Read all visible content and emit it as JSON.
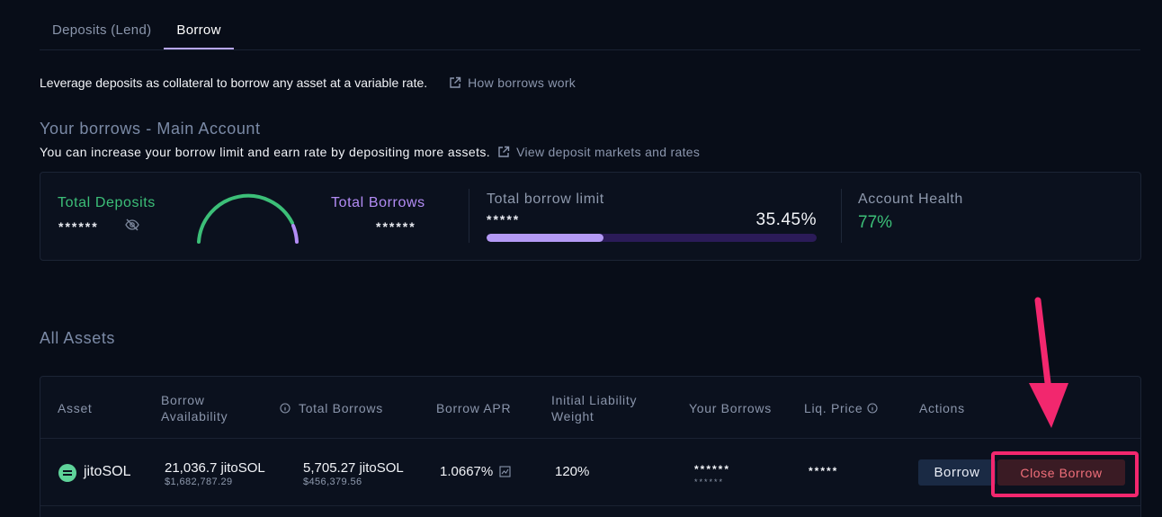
{
  "tabs": [
    {
      "label": "Deposits (Lend)",
      "active": false
    },
    {
      "label": "Borrow",
      "active": true
    }
  ],
  "intro": {
    "text": "Leverage deposits as collateral to borrow any asset at a variable rate.",
    "link": "How borrows work"
  },
  "borrows_section": {
    "title": "Your borrows - Main Account",
    "subtitle": "You can increase your borrow limit and earn rate by depositing more assets.",
    "link": "View deposit markets and rates"
  },
  "summary": {
    "total_deposits_label": "Total Deposits",
    "total_deposits_value": "******",
    "total_borrows_label": "Total Borrows",
    "total_borrows_value": "******",
    "borrow_limit_label": "Total borrow limit",
    "borrow_limit_value": "*****",
    "borrow_limit_percent": "35.45%",
    "borrow_limit_fraction": 0.3545,
    "account_health_label": "Account Health",
    "account_health_value": "77%"
  },
  "colors": {
    "green": "#3cbf78",
    "purple": "#b38cf5",
    "accent_red": "#f2276e"
  },
  "all_assets": {
    "title": "All Assets",
    "columns": {
      "asset": "Asset",
      "borrow_availability": "Borrow Availability",
      "total_borrows": "Total Borrows",
      "borrow_apr": "Borrow APR",
      "initial_liability_weight": "Initial Liability Weight",
      "your_borrows": "Your Borrows",
      "liq_price": "Liq. Price",
      "actions": "Actions"
    },
    "rows": [
      {
        "asset": "jitoSOL",
        "borrow_availability": "21,036.7 jitoSOL",
        "borrow_availability_usd": "$1,682,787.29",
        "total_borrows": "5,705.27 jitoSOL",
        "total_borrows_usd": "$456,379.56",
        "borrow_apr": "1.0667%",
        "initial_liability_weight": "120%",
        "your_borrows": "******",
        "your_borrows_sub": "******",
        "liq_price": "*****",
        "borrow_button": "Borrow",
        "close_button": "Close Borrow"
      }
    ]
  }
}
